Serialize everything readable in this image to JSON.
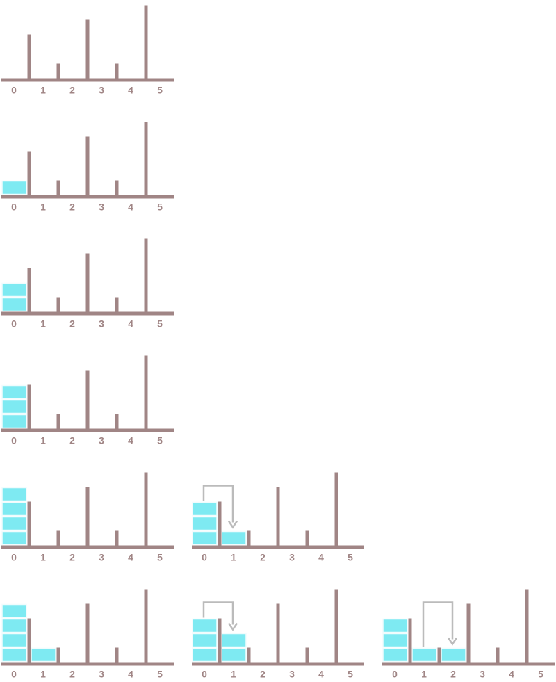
{
  "colors": {
    "structure": "#a08585",
    "water": "#7eeaf2",
    "water_seam": "#f0fcfd",
    "arrow": "#bbbbbb",
    "background": "#ffffff"
  },
  "axis_labels": [
    "0",
    "1",
    "2",
    "3",
    "4",
    "5"
  ],
  "wall_heights": [
    3,
    1,
    4,
    1,
    5
  ],
  "rows": [
    {
      "steps": [
        {
          "water": [
            0,
            0,
            0,
            0,
            0,
            0
          ],
          "arrow": null
        }
      ]
    },
    {
      "steps": [
        {
          "water": [
            1,
            0,
            0,
            0,
            0,
            0
          ],
          "arrow": null
        }
      ]
    },
    {
      "steps": [
        {
          "water": [
            2,
            0,
            0,
            0,
            0,
            0
          ],
          "arrow": null
        }
      ]
    },
    {
      "steps": [
        {
          "water": [
            3,
            0,
            0,
            0,
            0,
            0
          ],
          "arrow": null
        }
      ]
    },
    {
      "steps": [
        {
          "water": [
            4,
            0,
            0,
            0,
            0,
            0
          ],
          "arrow": null
        },
        {
          "water": [
            3,
            1,
            0,
            0,
            0,
            0
          ],
          "arrow": {
            "from": 0,
            "to": 1
          }
        }
      ]
    },
    {
      "steps": [
        {
          "water": [
            4,
            1,
            0,
            0,
            0,
            0
          ],
          "arrow": null
        },
        {
          "water": [
            3,
            2,
            0,
            0,
            0,
            0
          ],
          "arrow": {
            "from": 0,
            "to": 1
          }
        },
        {
          "water": [
            3,
            1,
            1,
            0,
            0,
            0
          ],
          "arrow": {
            "from": 1,
            "to": 2
          }
        }
      ]
    }
  ]
}
